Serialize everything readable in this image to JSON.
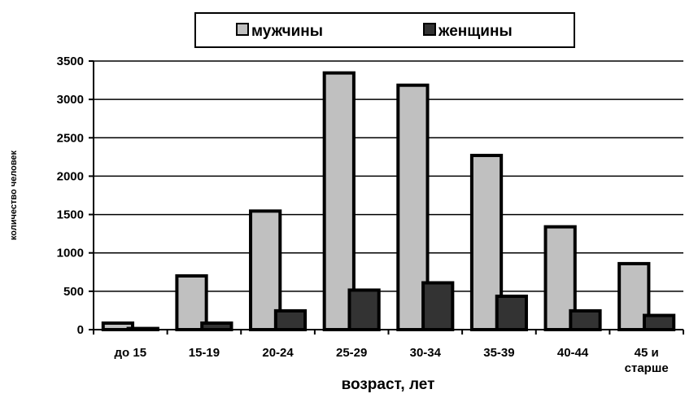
{
  "chart_data": {
    "type": "bar",
    "categories": [
      [
        "до 15"
      ],
      [
        "15-19"
      ],
      [
        "20-24"
      ],
      [
        "25-29"
      ],
      [
        "30-34"
      ],
      [
        "35-39"
      ],
      [
        "40-44"
      ],
      [
        "45 и",
        "старше"
      ]
    ],
    "series": [
      {
        "name": "мужчины",
        "color": "#c0c0c0",
        "values": [
          85,
          700,
          1545,
          3345,
          3185,
          2270,
          1340,
          860
        ]
      },
      {
        "name": "женщины",
        "color": "#333333",
        "values": [
          15,
          85,
          245,
          515,
          610,
          435,
          245,
          185
        ]
      }
    ],
    "xlabel": "возраст, лет",
    "ylabel": "количество человек",
    "ylim": [
      0,
      3500
    ],
    "yticks": [
      0,
      500,
      1000,
      1500,
      2000,
      2500,
      3000,
      3500
    ],
    "grid": true,
    "legend_position": "top"
  }
}
